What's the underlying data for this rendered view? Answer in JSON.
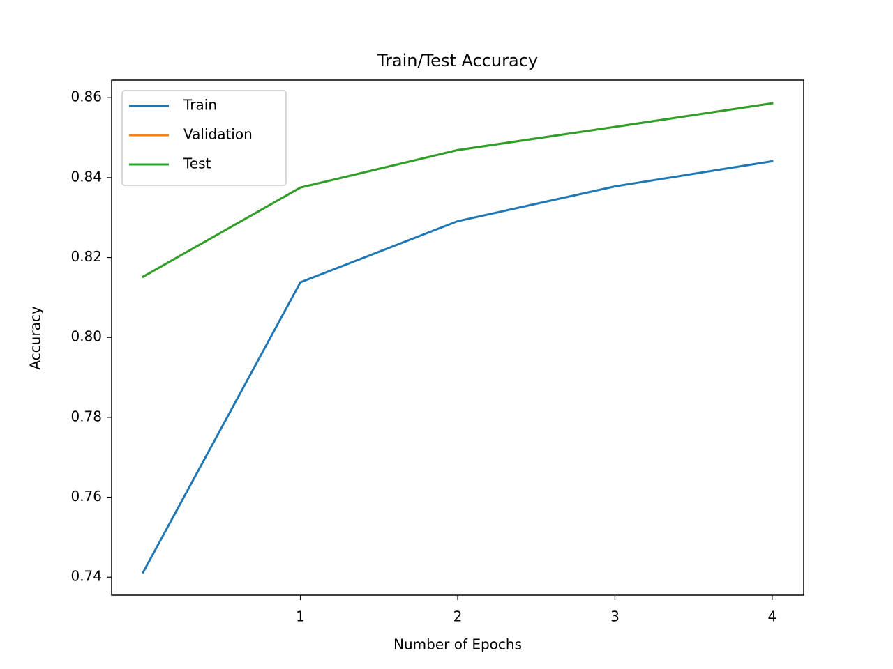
{
  "chart_data": {
    "type": "line",
    "title": "Train/Test Accuracy",
    "xlabel": "Number of Epochs",
    "ylabel": "Accuracy",
    "x": [
      0,
      1,
      2,
      3,
      4
    ],
    "series": [
      {
        "name": "Train",
        "color": "#1f77b4",
        "values": [
          0.7412,
          0.8138,
          0.8291,
          0.8378,
          0.8441
        ]
      },
      {
        "name": "Validation",
        "color": "#ff7f0e",
        "values": [
          0.8152,
          0.8375,
          0.8469,
          0.8527,
          0.8586
        ]
      },
      {
        "name": "Test",
        "color": "#2ca02c",
        "values": [
          0.8152,
          0.8375,
          0.8469,
          0.8527,
          0.8586
        ]
      }
    ],
    "xlim": [
      -0.2,
      4.2
    ],
    "xticks": [
      1,
      2,
      3,
      4
    ],
    "ylim": [
      0.7355,
      0.8644
    ],
    "yticks": [
      0.74,
      0.76,
      0.78,
      {
        "value": 0.8,
        "label": "0.80"
      },
      0.82,
      0.84,
      0.86
    ],
    "legend": "upper-left",
    "grid": false
  }
}
